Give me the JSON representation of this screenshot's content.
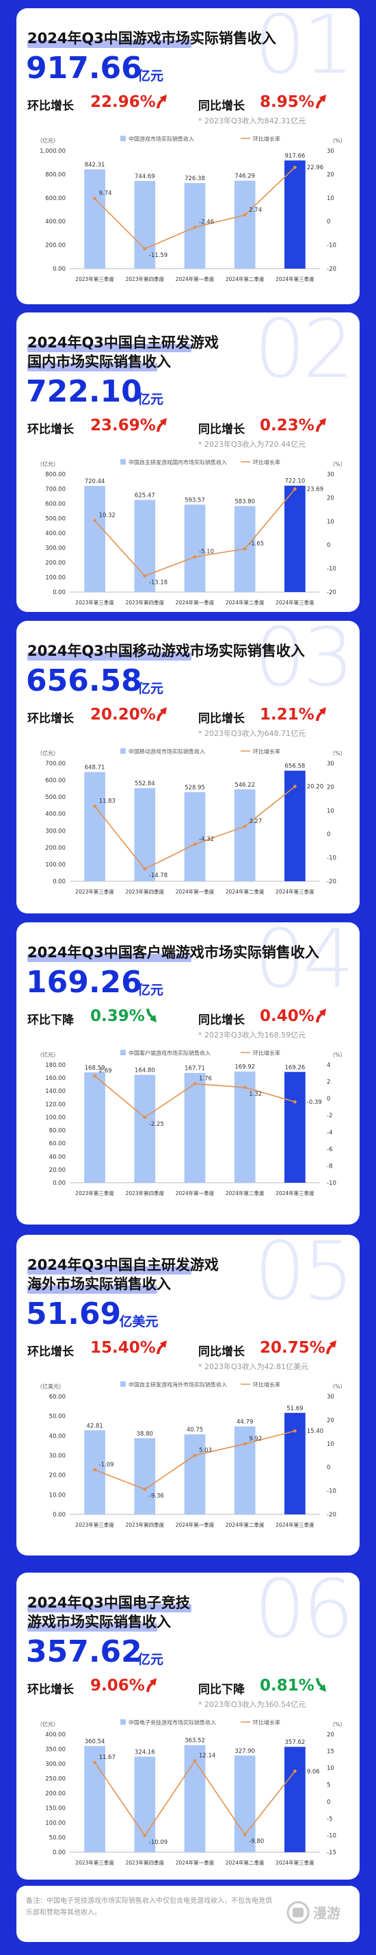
{
  "sections": [
    {
      "watermark": "01",
      "title_lines": [
        "2024年Q3中国游戏市场实际销售收入"
      ],
      "amount": "917.66",
      "unit": "亿元",
      "mom_label": "环比增长",
      "mom_value": "22.96%",
      "mom_dir": "up",
      "yoy_label": "同比增长",
      "yoy_value": "8.95%",
      "yoy_dir": "up",
      "note": "* 2023年Q3收入为842.31亿元",
      "chart_data": {
        "type": "bar",
        "categories": [
          "2023年第三季度",
          "2023年第四季度",
          "2024年第一季度",
          "2024年第二季度",
          "2024年第三季度"
        ],
        "series": [
          {
            "name": "中国游戏市场实际销售收入",
            "type": "bar",
            "axis": "left",
            "values": [
              842.31,
              744.69,
              726.38,
              746.29,
              917.66
            ]
          },
          {
            "name": "环比增长率",
            "type": "line",
            "axis": "right",
            "values": [
              9.74,
              -11.59,
              -2.46,
              2.74,
              22.96
            ]
          }
        ],
        "bar_labels": [
          "842.31",
          "744.69",
          "726.38",
          "746.29",
          "917.66"
        ],
        "line_labels": [
          "9.74",
          "-11.59",
          "-2.46",
          "2.74",
          "22.96"
        ],
        "left_unit": "（亿元）",
        "right_unit": "（%）",
        "left_ticks": [
          "1,000.00",
          "800.00",
          "600.00",
          "400.00",
          "200.00",
          "0.00"
        ],
        "left_max": 1000,
        "right_ticks": [
          "30",
          "20",
          "10",
          "0",
          "-10",
          "-20"
        ],
        "right_range": [
          -20,
          30
        ]
      }
    },
    {
      "watermark": "02",
      "title_lines": [
        "2024年Q3中国自主研发游戏",
        "国内市场实际销售收入"
      ],
      "amount": "722.10",
      "unit": "亿元",
      "mom_label": "环比增长",
      "mom_value": "23.69%",
      "mom_dir": "up",
      "yoy_label": "同比增长",
      "yoy_value": "0.23%",
      "yoy_dir": "up",
      "note": "* 2023年Q3收入为720.44亿元",
      "chart_data": {
        "type": "bar",
        "categories": [
          "2023年第三季度",
          "2023年第四季度",
          "2024年第一季度",
          "2024年第二季度",
          "2024年第三季度"
        ],
        "series": [
          {
            "name": "中国自主研发游戏国内市场实际销售收入",
            "type": "bar",
            "axis": "left",
            "values": [
              720.44,
              625.47,
              593.57,
              583.8,
              722.1
            ]
          },
          {
            "name": "环比增长率",
            "type": "line",
            "axis": "right",
            "values": [
              10.32,
              -13.18,
              -5.1,
              -1.65,
              23.69
            ]
          }
        ],
        "bar_labels": [
          "720.44",
          "625.47",
          "593.57",
          "583.80",
          "722.10"
        ],
        "line_labels": [
          "10.32",
          "-13.18",
          "-5.10",
          "-1.65",
          "23.69"
        ],
        "left_unit": "（亿元）",
        "right_unit": "（%）",
        "left_ticks": [
          "800.00",
          "700.00",
          "600.00",
          "500.00",
          "400.00",
          "300.00",
          "200.00",
          "100.00",
          "0.00"
        ],
        "left_max": 800,
        "right_ticks": [
          "30",
          "20",
          "10",
          "0",
          "-10",
          "-20"
        ],
        "right_range": [
          -20,
          30
        ]
      }
    },
    {
      "watermark": "03",
      "title_lines": [
        "2024年Q3中国移动游戏市场实际销售收入"
      ],
      "amount": "656.58",
      "unit": "亿元",
      "mom_label": "环比增长",
      "mom_value": "20.20%",
      "mom_dir": "up",
      "yoy_label": "同比增长",
      "yoy_value": "1.21%",
      "yoy_dir": "up",
      "note": "* 2023年Q3收入为648.71亿元",
      "chart_data": {
        "type": "bar",
        "categories": [
          "2023年第三季度",
          "2023年第四季度",
          "2024年第一季度",
          "2024年第二季度",
          "2024年第三季度"
        ],
        "series": [
          {
            "name": "中国移动游戏市场实际销售收入",
            "type": "bar",
            "axis": "left",
            "values": [
              648.71,
              552.84,
              528.95,
              546.22,
              656.58
            ]
          },
          {
            "name": "环比增长率",
            "type": "line",
            "axis": "right",
            "values": [
              11.83,
              -14.78,
              -4.32,
              3.27,
              20.2
            ]
          }
        ],
        "bar_labels": [
          "648.71",
          "552.84",
          "528.95",
          "546.22",
          "656.58"
        ],
        "line_labels": [
          "11.83",
          "-14.78",
          "-4.32",
          "3.27",
          "20.20"
        ],
        "left_unit": "（亿元）",
        "right_unit": "（%）",
        "left_ticks": [
          "700.00",
          "600.00",
          "500.00",
          "400.00",
          "300.00",
          "200.00",
          "100.00",
          "0.00"
        ],
        "left_max": 700,
        "right_ticks": [
          "30",
          "20",
          "10",
          "0",
          "-10",
          "-20"
        ],
        "right_range": [
          -20,
          30
        ]
      }
    },
    {
      "watermark": "04",
      "title_lines": [
        "2024年Q3中国客户端游戏市场实际销售收入"
      ],
      "amount": "169.26",
      "unit": "亿元",
      "mom_label": "环比下降",
      "mom_value": "0.39%",
      "mom_dir": "down",
      "yoy_label": "同比增长",
      "yoy_value": "0.40%",
      "yoy_dir": "up",
      "note": "* 2023年Q3收入为168.59亿元",
      "chart_data": {
        "type": "bar",
        "categories": [
          "2023年第三季度",
          "2023年第四季度",
          "2024年第一季度",
          "2024年第二季度",
          "2024年第三季度"
        ],
        "series": [
          {
            "name": "中国客户端游戏市场实际销售收入",
            "type": "bar",
            "axis": "left",
            "values": [
              168.59,
              164.8,
              167.71,
              169.92,
              169.26
            ]
          },
          {
            "name": "环比增长率",
            "type": "line",
            "axis": "right",
            "values": [
              2.69,
              -2.25,
              1.76,
              1.32,
              -0.39
            ]
          }
        ],
        "bar_labels": [
          "168.59",
          "164.80",
          "167.71",
          "169.92",
          "169.26"
        ],
        "line_labels": [
          "2.69",
          "-2.25",
          "1.76",
          "1.32",
          "-0.39"
        ],
        "left_unit": "（亿元）",
        "right_unit": "（%）",
        "left_ticks": [
          "180.00",
          "160.00",
          "140.00",
          "120.00",
          "100.00",
          "80.00",
          "60.00",
          "40.00",
          "20.00",
          "0.00"
        ],
        "left_max": 180,
        "right_ticks": [
          "4",
          "2",
          "0",
          "-2",
          "-4",
          "-6",
          "-8",
          "-10"
        ],
        "right_range": [
          -10,
          4
        ]
      }
    },
    {
      "watermark": "05",
      "title_lines": [
        "2024年Q3中国自主研发游戏",
        "海外市场实际销售收入"
      ],
      "amount": "51.69",
      "unit": "亿美元",
      "mom_label": "环比增长",
      "mom_value": "15.40%",
      "mom_dir": "up",
      "yoy_label": "同比增长",
      "yoy_value": "20.75%",
      "yoy_dir": "up",
      "note": "* 2023年Q3收入为42.81亿美元",
      "chart_data": {
        "type": "bar",
        "categories": [
          "2023年第三季度",
          "2023年第四季度",
          "2024年第一季度",
          "2024年第二季度",
          "2024年第三季度"
        ],
        "series": [
          {
            "name": "中国自主研发游戏海外市场实际销售收入",
            "type": "bar",
            "axis": "left",
            "values": [
              42.81,
              38.8,
              40.75,
              44.79,
              51.69
            ]
          },
          {
            "name": "环比增长率",
            "type": "line",
            "axis": "right",
            "values": [
              -1.09,
              -9.36,
              5.03,
              9.92,
              15.4
            ]
          }
        ],
        "bar_labels": [
          "42.81",
          "38.80",
          "40.75",
          "44.79",
          "51.69"
        ],
        "line_labels": [
          "-1.09",
          "-9.36",
          "5.03",
          "9.92",
          "15.40"
        ],
        "left_unit": "（亿美元）",
        "right_unit": "（%）",
        "left_ticks": [
          "60.00",
          "50.00",
          "40.00",
          "30.00",
          "20.00",
          "10.00",
          "0.00"
        ],
        "left_max": 60,
        "right_ticks": [
          "30",
          "20",
          "10",
          "0",
          "-10",
          "-20"
        ],
        "right_range": [
          -20,
          30
        ]
      }
    },
    {
      "watermark": "06",
      "title_lines": [
        "2024年Q3中国电子竞技",
        "游戏市场实际销售收入"
      ],
      "amount": "357.62",
      "unit": "亿元",
      "mom_label": "环比增长",
      "mom_value": "9.06%",
      "mom_dir": "up",
      "yoy_label": "同比下降",
      "yoy_value": "0.81%",
      "yoy_dir": "down",
      "note": "* 2023年Q3收入为360.54亿元",
      "chart_data": {
        "type": "bar",
        "categories": [
          "2023年第三季度",
          "2023年第四季度",
          "2024年第一季度",
          "2024年第二季度",
          "2024年第三季度"
        ],
        "series": [
          {
            "name": "中国电子竞技游戏市场实际销售收入",
            "type": "bar",
            "axis": "left",
            "values": [
              360.54,
              324.16,
              363.52,
              327.9,
              357.62
            ]
          },
          {
            "name": "环比增长率",
            "type": "line",
            "axis": "right",
            "values": [
              11.67,
              -10.09,
              12.14,
              -9.8,
              9.06
            ]
          }
        ],
        "bar_labels": [
          "360.54",
          "324.16",
          "363.52",
          "327.90",
          "357.62"
        ],
        "line_labels": [
          "11.67",
          "-10.09",
          "12.14",
          "-9.80",
          "9.06"
        ],
        "left_unit": "（亿元）",
        "right_unit": "（%）",
        "left_ticks": [
          "400.00",
          "350.00",
          "300.00",
          "250.00",
          "200.00",
          "150.00",
          "100.00",
          "50.00",
          "0.00"
        ],
        "left_max": 400,
        "right_ticks": [
          "20",
          "15",
          "10",
          "5",
          "0",
          "-5",
          "-10",
          "-15"
        ],
        "right_range": [
          -15,
          20
        ]
      }
    }
  ],
  "footnote": "备注：中国电子竞技游戏市场实际销售收入中仅包含电竞游戏收入，不包含电竞俱乐部和赞助等其他收入。",
  "logo_text": "漫游",
  "colors": {
    "background": "#1c2fd6",
    "accent_blue": "#1530d8",
    "bar_light": "#a9c6f7",
    "bar_current": "#2143e0",
    "line": "#e3914d",
    "up_red": "#e0251b",
    "down_green": "#14a14a"
  }
}
